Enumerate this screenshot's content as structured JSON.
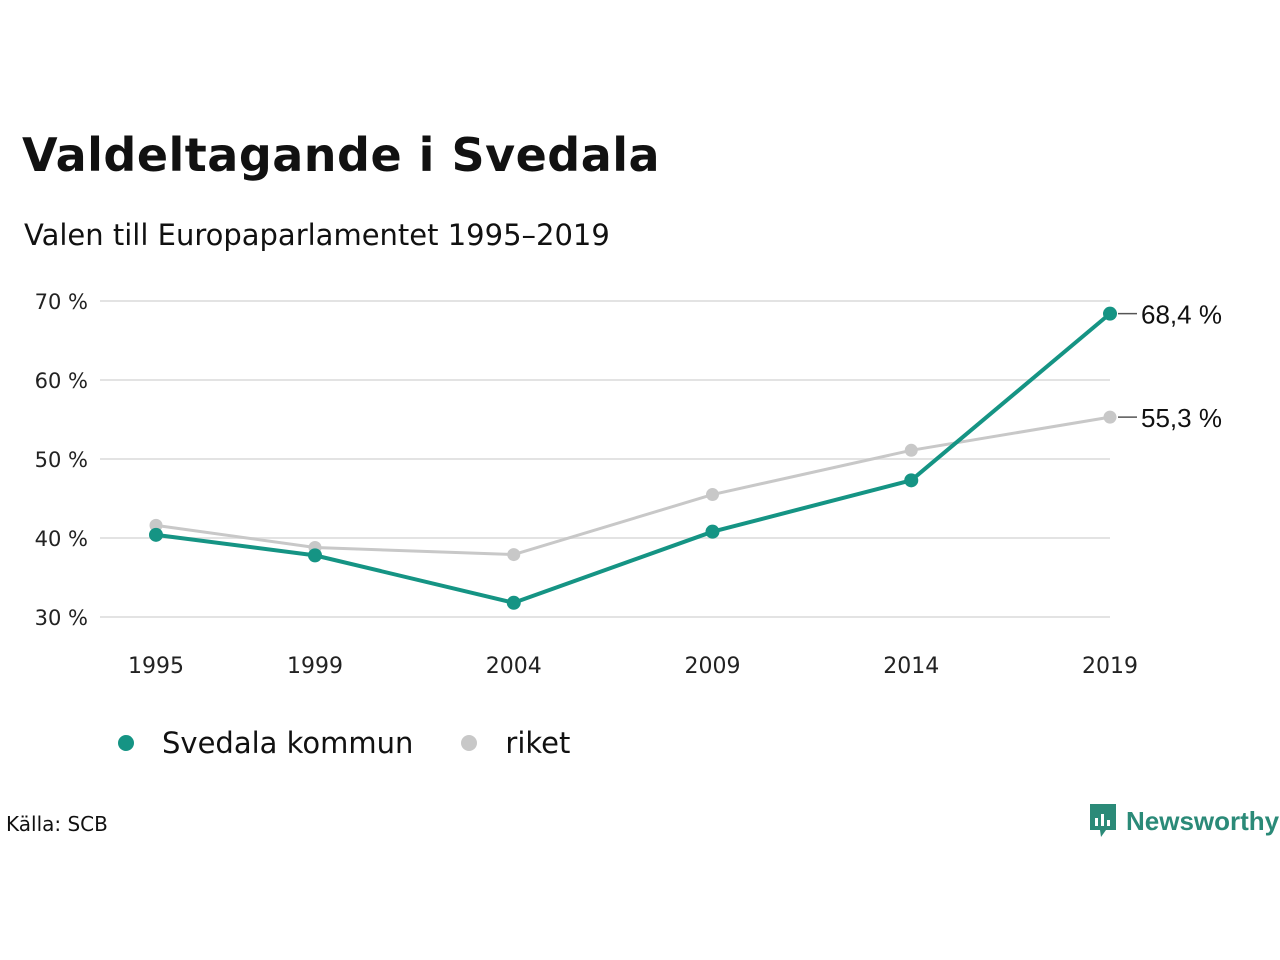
{
  "title": "Valdeltagande i Svedala",
  "subtitle": "Valen till Europaparlamentet 1995–2019",
  "source": "Källa: SCB",
  "brand": "Newsworthy",
  "colors": {
    "svedala": "#159484",
    "riket": "#c8c8c8",
    "grid": "#e3e3e3",
    "brand": "#2b8a78"
  },
  "chart_data": {
    "type": "line",
    "x": [
      "1995",
      "1999",
      "2004",
      "2009",
      "2014",
      "2019"
    ],
    "yticks": [
      "30 %",
      "40 %",
      "50 %",
      "60 %",
      "70 %"
    ],
    "ylim": [
      30,
      70
    ],
    "grid": true,
    "legend_position": "bottom-left",
    "series": [
      {
        "name": "riket",
        "color": "#c8c8c8",
        "values": [
          41.6,
          38.8,
          37.9,
          45.5,
          51.1,
          55.3
        ],
        "end_label": "55,3 %"
      },
      {
        "name": "Svedala kommun",
        "color": "#159484",
        "values": [
          40.4,
          37.8,
          31.8,
          40.8,
          47.3,
          68.4
        ],
        "end_label": "68,4 %"
      }
    ]
  }
}
